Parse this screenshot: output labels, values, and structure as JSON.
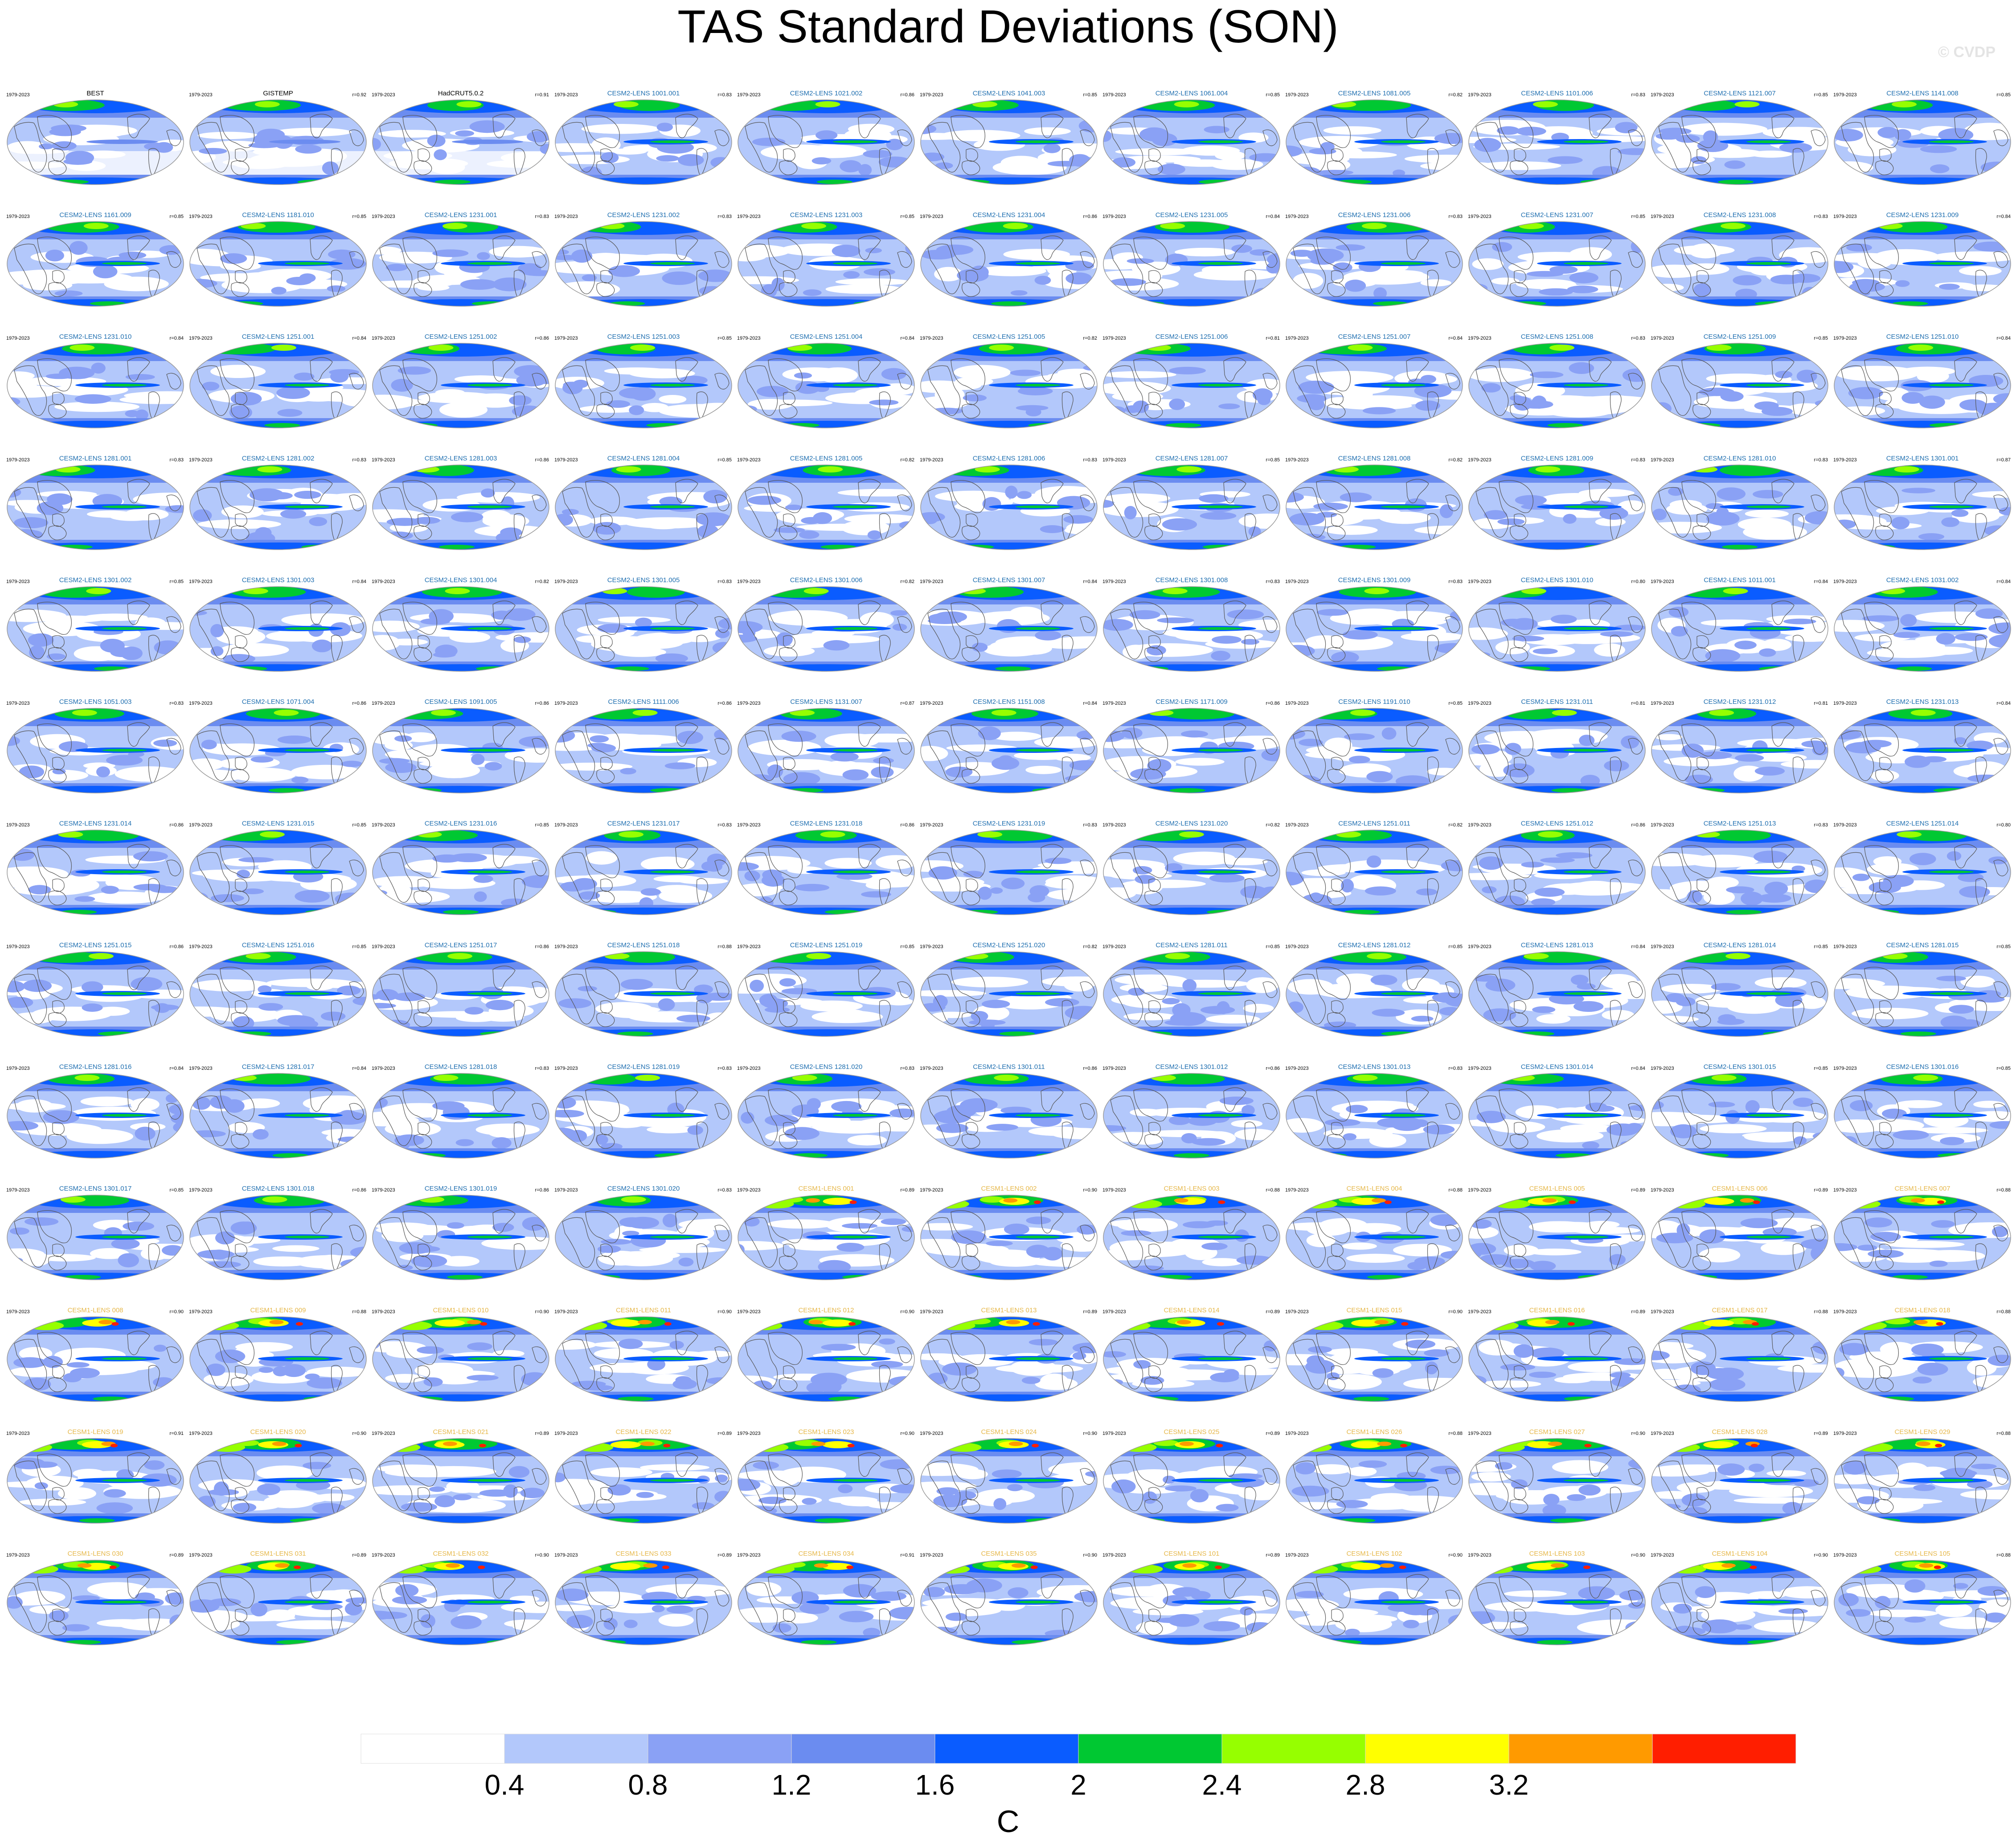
{
  "title": "TAS Standard Deviations (SON)",
  "watermark": "© CVDP",
  "period": "1979-2023",
  "colors": {
    "obs_title": "#000000",
    "cesm2_title": "#1f6fb0",
    "cesm1_title": "#e6b84a",
    "coast": "#555555",
    "map_bg": "#ffffff"
  },
  "chart_data": {
    "type": "heatmap",
    "title": "TAS Standard Deviations (SON)",
    "colorbar": {
      "unit": "C",
      "ticks": [
        "0.4",
        "0.8",
        "1.2",
        "1.6",
        "2",
        "2.4",
        "2.8",
        "3.2"
      ],
      "colors": [
        "#ffffff",
        "#b3c8fb",
        "#8aa1f5",
        "#6b8cf0",
        "#0a5cff",
        "#00c832",
        "#96ff00",
        "#ffff00",
        "#ff9a00",
        "#ff1e00"
      ]
    },
    "panels": [
      {
        "name": "BEST",
        "r": "",
        "group": "obs"
      },
      {
        "name": "GISTEMP",
        "r": "r=0.92",
        "group": "obs"
      },
      {
        "name": "HadCRUT5.0.2",
        "r": "r=0.91",
        "group": "obs"
      },
      {
        "name": "CESM2-LENS 1001.001",
        "r": "r=0.83",
        "group": "cesm2"
      },
      {
        "name": "CESM2-LENS 1021.002",
        "r": "r=0.86",
        "group": "cesm2"
      },
      {
        "name": "CESM2-LENS 1041.003",
        "r": "r=0.85",
        "group": "cesm2"
      },
      {
        "name": "CESM2-LENS 1061.004",
        "r": "r=0.85",
        "group": "cesm2"
      },
      {
        "name": "CESM2-LENS 1081.005",
        "r": "r=0.82",
        "group": "cesm2"
      },
      {
        "name": "CESM2-LENS 1101.006",
        "r": "r=0.83",
        "group": "cesm2"
      },
      {
        "name": "CESM2-LENS 1121.007",
        "r": "r=0.85",
        "group": "cesm2"
      },
      {
        "name": "CESM2-LENS 1141.008",
        "r": "r=0.85",
        "group": "cesm2"
      },
      {
        "name": "CESM2-LENS 1161.009",
        "r": "r=0.85",
        "group": "cesm2"
      },
      {
        "name": "CESM2-LENS 1181.010",
        "r": "r=0.85",
        "group": "cesm2"
      },
      {
        "name": "CESM2-LENS 1231.001",
        "r": "r=0.83",
        "group": "cesm2"
      },
      {
        "name": "CESM2-LENS 1231.002",
        "r": "r=0.83",
        "group": "cesm2"
      },
      {
        "name": "CESM2-LENS 1231.003",
        "r": "r=0.85",
        "group": "cesm2"
      },
      {
        "name": "CESM2-LENS 1231.004",
        "r": "r=0.86",
        "group": "cesm2"
      },
      {
        "name": "CESM2-LENS 1231.005",
        "r": "r=0.84",
        "group": "cesm2"
      },
      {
        "name": "CESM2-LENS 1231.006",
        "r": "r=0.83",
        "group": "cesm2"
      },
      {
        "name": "CESM2-LENS 1231.007",
        "r": "r=0.85",
        "group": "cesm2"
      },
      {
        "name": "CESM2-LENS 1231.008",
        "r": "r=0.83",
        "group": "cesm2"
      },
      {
        "name": "CESM2-LENS 1231.009",
        "r": "r=0.84",
        "group": "cesm2"
      },
      {
        "name": "CESM2-LENS 1231.010",
        "r": "r=0.84",
        "group": "cesm2"
      },
      {
        "name": "CESM2-LENS 1251.001",
        "r": "r=0.84",
        "group": "cesm2"
      },
      {
        "name": "CESM2-LENS 1251.002",
        "r": "r=0.86",
        "group": "cesm2"
      },
      {
        "name": "CESM2-LENS 1251.003",
        "r": "r=0.85",
        "group": "cesm2"
      },
      {
        "name": "CESM2-LENS 1251.004",
        "r": "r=0.84",
        "group": "cesm2"
      },
      {
        "name": "CESM2-LENS 1251.005",
        "r": "r=0.82",
        "group": "cesm2"
      },
      {
        "name": "CESM2-LENS 1251.006",
        "r": "r=0.81",
        "group": "cesm2"
      },
      {
        "name": "CESM2-LENS 1251.007",
        "r": "r=0.84",
        "group": "cesm2"
      },
      {
        "name": "CESM2-LENS 1251.008",
        "r": "r=0.83",
        "group": "cesm2"
      },
      {
        "name": "CESM2-LENS 1251.009",
        "r": "r=0.85",
        "group": "cesm2"
      },
      {
        "name": "CESM2-LENS 1251.010",
        "r": "r=0.84",
        "group": "cesm2"
      },
      {
        "name": "CESM2-LENS 1281.001",
        "r": "r=0.83",
        "group": "cesm2"
      },
      {
        "name": "CESM2-LENS 1281.002",
        "r": "r=0.83",
        "group": "cesm2"
      },
      {
        "name": "CESM2-LENS 1281.003",
        "r": "r=0.86",
        "group": "cesm2"
      },
      {
        "name": "CESM2-LENS 1281.004",
        "r": "r=0.85",
        "group": "cesm2"
      },
      {
        "name": "CESM2-LENS 1281.005",
        "r": "r=0.82",
        "group": "cesm2"
      },
      {
        "name": "CESM2-LENS 1281.006",
        "r": "r=0.83",
        "group": "cesm2"
      },
      {
        "name": "CESM2-LENS 1281.007",
        "r": "r=0.85",
        "group": "cesm2"
      },
      {
        "name": "CESM2-LENS 1281.008",
        "r": "r=0.82",
        "group": "cesm2"
      },
      {
        "name": "CESM2-LENS 1281.009",
        "r": "r=0.83",
        "group": "cesm2"
      },
      {
        "name": "CESM2-LENS 1281.010",
        "r": "r=0.83",
        "group": "cesm2"
      },
      {
        "name": "CESM2-LENS 1301.001",
        "r": "r=0.87",
        "group": "cesm2"
      },
      {
        "name": "CESM2-LENS 1301.002",
        "r": "r=0.85",
        "group": "cesm2"
      },
      {
        "name": "CESM2-LENS 1301.003",
        "r": "r=0.84",
        "group": "cesm2"
      },
      {
        "name": "CESM2-LENS 1301.004",
        "r": "r=0.82",
        "group": "cesm2"
      },
      {
        "name": "CESM2-LENS 1301.005",
        "r": "r=0.83",
        "group": "cesm2"
      },
      {
        "name": "CESM2-LENS 1301.006",
        "r": "r=0.82",
        "group": "cesm2"
      },
      {
        "name": "CESM2-LENS 1301.007",
        "r": "r=0.84",
        "group": "cesm2"
      },
      {
        "name": "CESM2-LENS 1301.008",
        "r": "r=0.83",
        "group": "cesm2"
      },
      {
        "name": "CESM2-LENS 1301.009",
        "r": "r=0.83",
        "group": "cesm2"
      },
      {
        "name": "CESM2-LENS 1301.010",
        "r": "r=0.80",
        "group": "cesm2"
      },
      {
        "name": "CESM2-LENS 1011.001",
        "r": "r=0.84",
        "group": "cesm2"
      },
      {
        "name": "CESM2-LENS 1031.002",
        "r": "r=0.84",
        "group": "cesm2"
      },
      {
        "name": "CESM2-LENS 1051.003",
        "r": "r=0.83",
        "group": "cesm2"
      },
      {
        "name": "CESM2-LENS 1071.004",
        "r": "r=0.86",
        "group": "cesm2"
      },
      {
        "name": "CESM2-LENS 1091.005",
        "r": "r=0.86",
        "group": "cesm2"
      },
      {
        "name": "CESM2-LENS 1111.006",
        "r": "r=0.86",
        "group": "cesm2"
      },
      {
        "name": "CESM2-LENS 1131.007",
        "r": "r=0.87",
        "group": "cesm2"
      },
      {
        "name": "CESM2-LENS 1151.008",
        "r": "r=0.84",
        "group": "cesm2"
      },
      {
        "name": "CESM2-LENS 1171.009",
        "r": "r=0.86",
        "group": "cesm2"
      },
      {
        "name": "CESM2-LENS 1191.010",
        "r": "r=0.85",
        "group": "cesm2"
      },
      {
        "name": "CESM2-LENS 1231.011",
        "r": "r=0.81",
        "group": "cesm2"
      },
      {
        "name": "CESM2-LENS 1231.012",
        "r": "r=0.81",
        "group": "cesm2"
      },
      {
        "name": "CESM2-LENS 1231.013",
        "r": "r=0.84",
        "group": "cesm2"
      },
      {
        "name": "CESM2-LENS 1231.014",
        "r": "r=0.86",
        "group": "cesm2"
      },
      {
        "name": "CESM2-LENS 1231.015",
        "r": "r=0.85",
        "group": "cesm2"
      },
      {
        "name": "CESM2-LENS 1231.016",
        "r": "r=0.85",
        "group": "cesm2"
      },
      {
        "name": "CESM2-LENS 1231.017",
        "r": "r=0.83",
        "group": "cesm2"
      },
      {
        "name": "CESM2-LENS 1231.018",
        "r": "r=0.86",
        "group": "cesm2"
      },
      {
        "name": "CESM2-LENS 1231.019",
        "r": "r=0.83",
        "group": "cesm2"
      },
      {
        "name": "CESM2-LENS 1231.020",
        "r": "r=0.82",
        "group": "cesm2"
      },
      {
        "name": "CESM2-LENS 1251.011",
        "r": "r=0.82",
        "group": "cesm2"
      },
      {
        "name": "CESM2-LENS 1251.012",
        "r": "r=0.86",
        "group": "cesm2"
      },
      {
        "name": "CESM2-LENS 1251.013",
        "r": "r=0.83",
        "group": "cesm2"
      },
      {
        "name": "CESM2-LENS 1251.014",
        "r": "r=0.80",
        "group": "cesm2"
      },
      {
        "name": "CESM2-LENS 1251.015",
        "r": "r=0.86",
        "group": "cesm2"
      },
      {
        "name": "CESM2-LENS 1251.016",
        "r": "r=0.85",
        "group": "cesm2"
      },
      {
        "name": "CESM2-LENS 1251.017",
        "r": "r=0.86",
        "group": "cesm2"
      },
      {
        "name": "CESM2-LENS 1251.018",
        "r": "r=0.88",
        "group": "cesm2"
      },
      {
        "name": "CESM2-LENS 1251.019",
        "r": "r=0.85",
        "group": "cesm2"
      },
      {
        "name": "CESM2-LENS 1251.020",
        "r": "r=0.82",
        "group": "cesm2"
      },
      {
        "name": "CESM2-LENS 1281.011",
        "r": "r=0.85",
        "group": "cesm2"
      },
      {
        "name": "CESM2-LENS 1281.012",
        "r": "r=0.85",
        "group": "cesm2"
      },
      {
        "name": "CESM2-LENS 1281.013",
        "r": "r=0.84",
        "group": "cesm2"
      },
      {
        "name": "CESM2-LENS 1281.014",
        "r": "r=0.85",
        "group": "cesm2"
      },
      {
        "name": "CESM2-LENS 1281.015",
        "r": "r=0.85",
        "group": "cesm2"
      },
      {
        "name": "CESM2-LENS 1281.016",
        "r": "r=0.84",
        "group": "cesm2"
      },
      {
        "name": "CESM2-LENS 1281.017",
        "r": "r=0.84",
        "group": "cesm2"
      },
      {
        "name": "CESM2-LENS 1281.018",
        "r": "r=0.83",
        "group": "cesm2"
      },
      {
        "name": "CESM2-LENS 1281.019",
        "r": "r=0.83",
        "group": "cesm2"
      },
      {
        "name": "CESM2-LENS 1281.020",
        "r": "r=0.83",
        "group": "cesm2"
      },
      {
        "name": "CESM2-LENS 1301.011",
        "r": "r=0.86",
        "group": "cesm2"
      },
      {
        "name": "CESM2-LENS 1301.012",
        "r": "r=0.86",
        "group": "cesm2"
      },
      {
        "name": "CESM2-LENS 1301.013",
        "r": "r=0.83",
        "group": "cesm2"
      },
      {
        "name": "CESM2-LENS 1301.014",
        "r": "r=0.84",
        "group": "cesm2"
      },
      {
        "name": "CESM2-LENS 1301.015",
        "r": "r=0.85",
        "group": "cesm2"
      },
      {
        "name": "CESM2-LENS 1301.016",
        "r": "r=0.85",
        "group": "cesm2"
      },
      {
        "name": "CESM2-LENS 1301.017",
        "r": "r=0.85",
        "group": "cesm2"
      },
      {
        "name": "CESM2-LENS 1301.018",
        "r": "r=0.86",
        "group": "cesm2"
      },
      {
        "name": "CESM2-LENS 1301.019",
        "r": "r=0.86",
        "group": "cesm2"
      },
      {
        "name": "CESM2-LENS 1301.020",
        "r": "r=0.83",
        "group": "cesm2"
      },
      {
        "name": "CESM1-LENS 001",
        "r": "r=0.89",
        "group": "cesm1"
      },
      {
        "name": "CESM1-LENS 002",
        "r": "r=0.90",
        "group": "cesm1"
      },
      {
        "name": "CESM1-LENS 003",
        "r": "r=0.88",
        "group": "cesm1"
      },
      {
        "name": "CESM1-LENS 004",
        "r": "r=0.88",
        "group": "cesm1"
      },
      {
        "name": "CESM1-LENS 005",
        "r": "r=0.89",
        "group": "cesm1"
      },
      {
        "name": "CESM1-LENS 006",
        "r": "r=0.89",
        "group": "cesm1"
      },
      {
        "name": "CESM1-LENS 007",
        "r": "r=0.88",
        "group": "cesm1"
      },
      {
        "name": "CESM1-LENS 008",
        "r": "r=0.90",
        "group": "cesm1"
      },
      {
        "name": "CESM1-LENS 009",
        "r": "r=0.88",
        "group": "cesm1"
      },
      {
        "name": "CESM1-LENS 010",
        "r": "r=0.90",
        "group": "cesm1"
      },
      {
        "name": "CESM1-LENS 011",
        "r": "r=0.90",
        "group": "cesm1"
      },
      {
        "name": "CESM1-LENS 012",
        "r": "r=0.90",
        "group": "cesm1"
      },
      {
        "name": "CESM1-LENS 013",
        "r": "r=0.89",
        "group": "cesm1"
      },
      {
        "name": "CESM1-LENS 014",
        "r": "r=0.89",
        "group": "cesm1"
      },
      {
        "name": "CESM1-LENS 015",
        "r": "r=0.90",
        "group": "cesm1"
      },
      {
        "name": "CESM1-LENS 016",
        "r": "r=0.89",
        "group": "cesm1"
      },
      {
        "name": "CESM1-LENS 017",
        "r": "r=0.88",
        "group": "cesm1"
      },
      {
        "name": "CESM1-LENS 018",
        "r": "r=0.88",
        "group": "cesm1"
      },
      {
        "name": "CESM1-LENS 019",
        "r": "r=0.91",
        "group": "cesm1"
      },
      {
        "name": "CESM1-LENS 020",
        "r": "r=0.90",
        "group": "cesm1"
      },
      {
        "name": "CESM1-LENS 021",
        "r": "r=0.89",
        "group": "cesm1"
      },
      {
        "name": "CESM1-LENS 022",
        "r": "r=0.89",
        "group": "cesm1"
      },
      {
        "name": "CESM1-LENS 023",
        "r": "r=0.90",
        "group": "cesm1"
      },
      {
        "name": "CESM1-LENS 024",
        "r": "r=0.90",
        "group": "cesm1"
      },
      {
        "name": "CESM1-LENS 025",
        "r": "r=0.89",
        "group": "cesm1"
      },
      {
        "name": "CESM1-LENS 026",
        "r": "r=0.88",
        "group": "cesm1"
      },
      {
        "name": "CESM1-LENS 027",
        "r": "r=0.90",
        "group": "cesm1"
      },
      {
        "name": "CESM1-LENS 028",
        "r": "r=0.89",
        "group": "cesm1"
      },
      {
        "name": "CESM1-LENS 029",
        "r": "r=0.88",
        "group": "cesm1"
      },
      {
        "name": "CESM1-LENS 030",
        "r": "r=0.89",
        "group": "cesm1"
      },
      {
        "name": "CESM1-LENS 031",
        "r": "r=0.89",
        "group": "cesm1"
      },
      {
        "name": "CESM1-LENS 032",
        "r": "r=0.90",
        "group": "cesm1"
      },
      {
        "name": "CESM1-LENS 033",
        "r": "r=0.89",
        "group": "cesm1"
      },
      {
        "name": "CESM1-LENS 034",
        "r": "r=0.91",
        "group": "cesm1"
      },
      {
        "name": "CESM1-LENS 035",
        "r": "r=0.90",
        "group": "cesm1"
      },
      {
        "name": "CESM1-LENS 101",
        "r": "r=0.89",
        "group": "cesm1"
      },
      {
        "name": "CESM1-LENS 102",
        "r": "r=0.90",
        "group": "cesm1"
      },
      {
        "name": "CESM1-LENS 103",
        "r": "r=0.90",
        "group": "cesm1"
      },
      {
        "name": "CESM1-LENS 104",
        "r": "r=0.90",
        "group": "cesm1"
      },
      {
        "name": "CESM1-LENS 105",
        "r": "r=0.88",
        "group": "cesm1"
      }
    ]
  }
}
